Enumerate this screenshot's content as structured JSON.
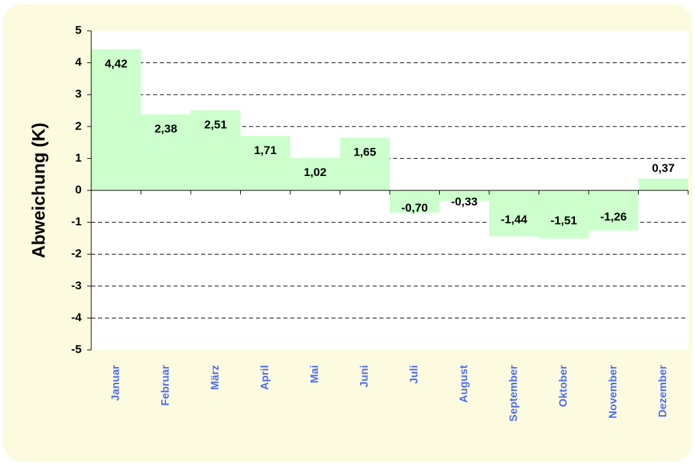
{
  "chart_data": {
    "type": "bar",
    "y_label": "Abweichung (K)",
    "categories": [
      "Januar",
      "Februar",
      "März",
      "April",
      "Mai",
      "Juni",
      "Juli",
      "August",
      "September",
      "Oktober",
      "November",
      "Dezember"
    ],
    "values": [
      4.42,
      2.38,
      2.51,
      1.71,
      1.02,
      1.65,
      -0.7,
      -0.33,
      -1.44,
      -1.51,
      -1.26,
      0.37
    ],
    "value_labels": [
      "4,42",
      "2,38",
      "2,51",
      "1,71",
      "1,02",
      "1,65",
      "-0,70",
      "-0,33",
      "-1,44",
      "-1,51",
      "-1,26",
      "0,37"
    ],
    "color": "#ccffcc",
    "ylim": [
      -5,
      5
    ],
    "yticks": [
      -5,
      -4,
      -3,
      -2,
      -1,
      0,
      1,
      2,
      3,
      4,
      5
    ],
    "grid": true
  }
}
